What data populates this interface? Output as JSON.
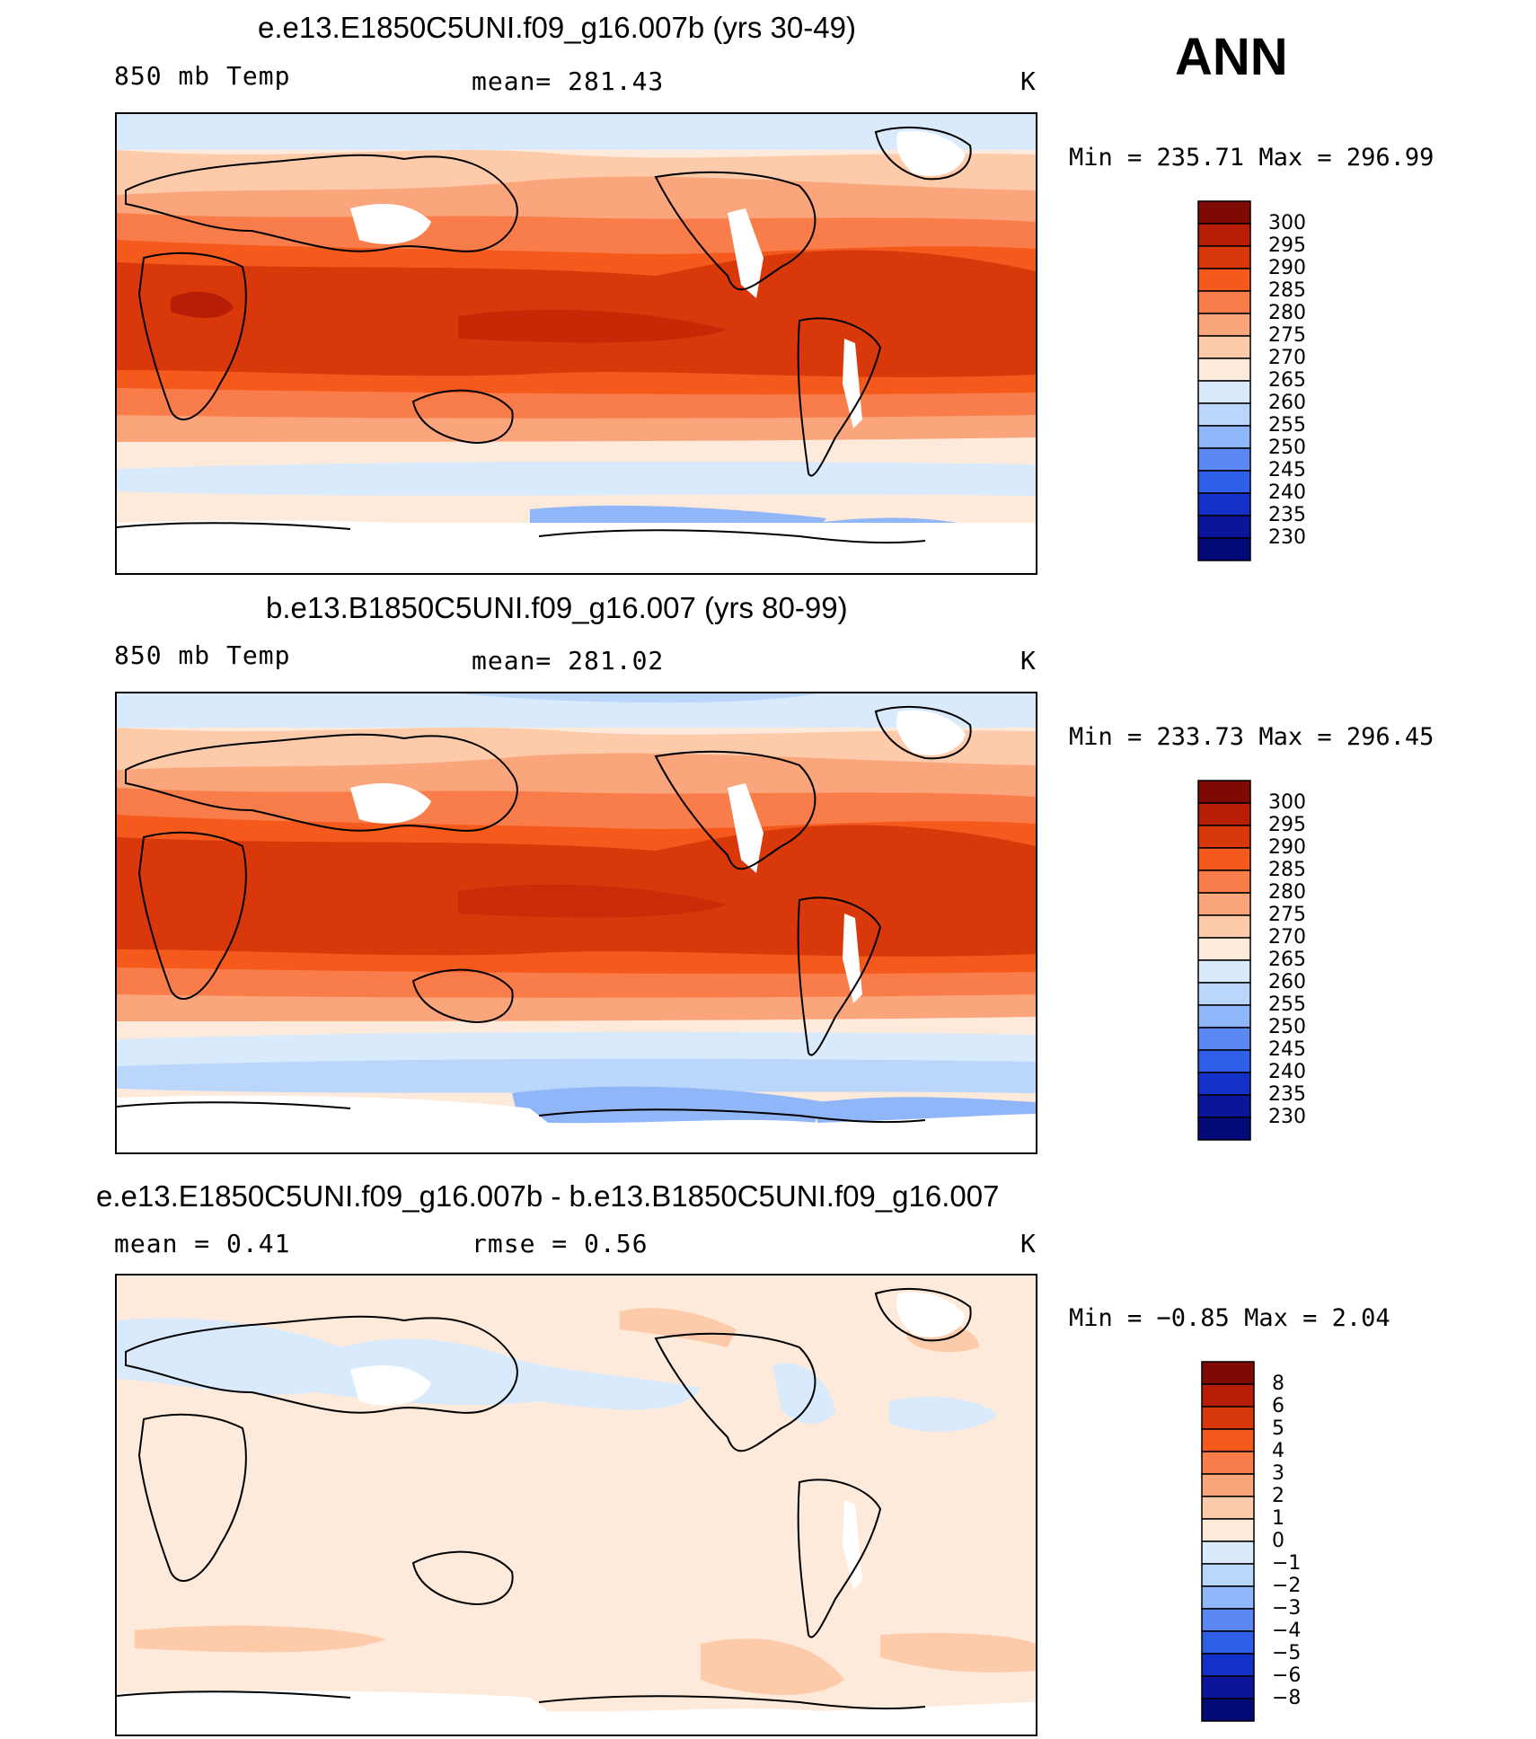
{
  "header": {
    "season": "ANN"
  },
  "panels": [
    {
      "title": "e.e13.E1850C5UNI.f09_g16.007b (yrs 30-49)",
      "left_text": "850 mb Temp",
      "center_text": "mean=  281.43",
      "units": "K",
      "min_max": "Min  =  235.71  Max  =  296.99",
      "colorbar": {
        "labels": [
          "300",
          "295",
          "290",
          "285",
          "280",
          "275",
          "270",
          "265",
          "260",
          "255",
          "250",
          "245",
          "240",
          "235",
          "230"
        ],
        "colors": [
          "#7f0a04",
          "#b81e06",
          "#d9380b",
          "#f55a1c",
          "#f97d4a",
          "#fba57c",
          "#fdcbaa",
          "#feeadb",
          "#d8eafc",
          "#bad6fb",
          "#8fb6f8",
          "#5b88f2",
          "#2f5ee9",
          "#1330c9",
          "#0a1599",
          "#020a78"
        ]
      }
    },
    {
      "title": "b.e13.B1850C5UNI.f09_g16.007 (yrs 80-99)",
      "left_text": "850 mb Temp",
      "center_text": "mean=  281.02",
      "units": "K",
      "min_max": "Min  =  233.73  Max  =  296.45",
      "colorbar": {
        "labels": [
          "300",
          "295",
          "290",
          "285",
          "280",
          "275",
          "270",
          "265",
          "260",
          "255",
          "250",
          "245",
          "240",
          "235",
          "230"
        ],
        "colors": [
          "#7f0a04",
          "#b81e06",
          "#d9380b",
          "#f55a1c",
          "#f97d4a",
          "#fba57c",
          "#fdcbaa",
          "#feeadb",
          "#d8eafc",
          "#bad6fb",
          "#8fb6f8",
          "#5b88f2",
          "#2f5ee9",
          "#1330c9",
          "#0a1599",
          "#020a78"
        ]
      }
    },
    {
      "title": "e.e13.E1850C5UNI.f09_g16.007b - b.e13.B1850C5UNI.f09_g16.007",
      "left_text": "mean =     0.41",
      "center_text": "rmse =     0.56",
      "units": "K",
      "min_max": "Min  =   −0.85  Max  =     2.04",
      "colorbar": {
        "labels": [
          "8",
          "6",
          "5",
          "4",
          "3",
          "2",
          "1",
          "0",
          "−1",
          "−2",
          "−3",
          "−4",
          "−5",
          "−6",
          "−8"
        ],
        "colors": [
          "#7f0a04",
          "#b81e06",
          "#d9380b",
          "#f55a1c",
          "#f97d4a",
          "#fba57c",
          "#fdcbaa",
          "#feeadb",
          "#d8eafc",
          "#bad6fb",
          "#8fb6f8",
          "#5b88f2",
          "#2f5ee9",
          "#1330c9",
          "#0a1599",
          "#020a78"
        ]
      }
    }
  ]
}
